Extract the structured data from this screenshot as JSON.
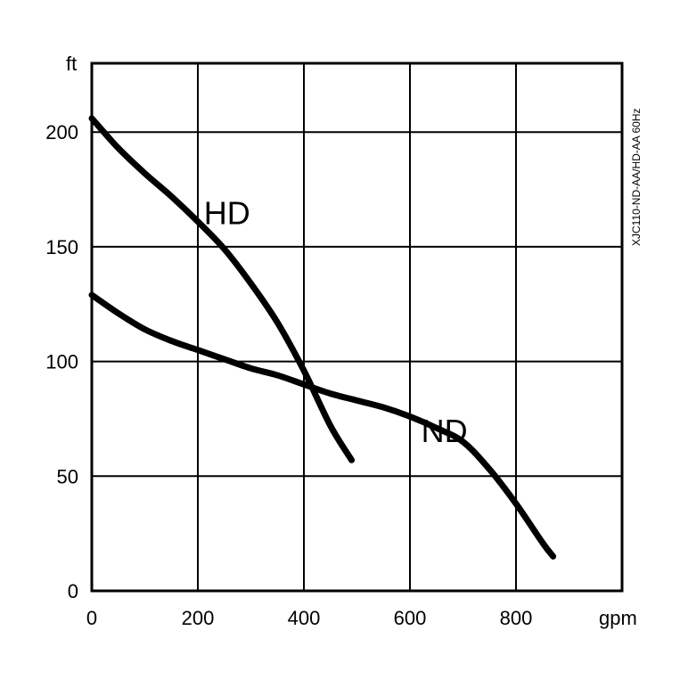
{
  "chart_data": {
    "type": "line",
    "xlabel": "gpm",
    "ylabel": "ft",
    "xlim": [
      0,
      1000
    ],
    "ylim": [
      0,
      230
    ],
    "x_ticks": [
      0,
      200,
      400,
      600,
      800
    ],
    "x_tick_labels": [
      "0",
      "200",
      "400",
      "600",
      "800"
    ],
    "y_ticks": [
      0,
      50,
      100,
      150,
      200
    ],
    "y_tick_labels": [
      "0",
      "50",
      "100",
      "150",
      "200"
    ],
    "grid": true,
    "legend": "none",
    "model_label": "XJC110-ND-AA/HD-AA 60Hz",
    "series": [
      {
        "name": "HD",
        "x": [
          0,
          50,
          100,
          150,
          200,
          250,
          300,
          350,
          400,
          450,
          490
        ],
        "y": [
          206,
          193,
          182,
          172,
          161,
          149,
          134,
          117,
          96,
          72,
          57
        ],
        "label_at": [
          255,
          165
        ]
      },
      {
        "name": "ND",
        "x": [
          0,
          50,
          100,
          150,
          200,
          250,
          300,
          350,
          400,
          450,
          500,
          550,
          600,
          650,
          700,
          750,
          800,
          850,
          870
        ],
        "y": [
          129,
          121,
          114,
          109,
          105,
          101,
          97,
          94,
          90,
          86,
          83,
          80,
          76,
          71,
          65,
          53,
          38,
          21,
          15
        ],
        "label_at": [
          665,
          70
        ]
      }
    ]
  }
}
